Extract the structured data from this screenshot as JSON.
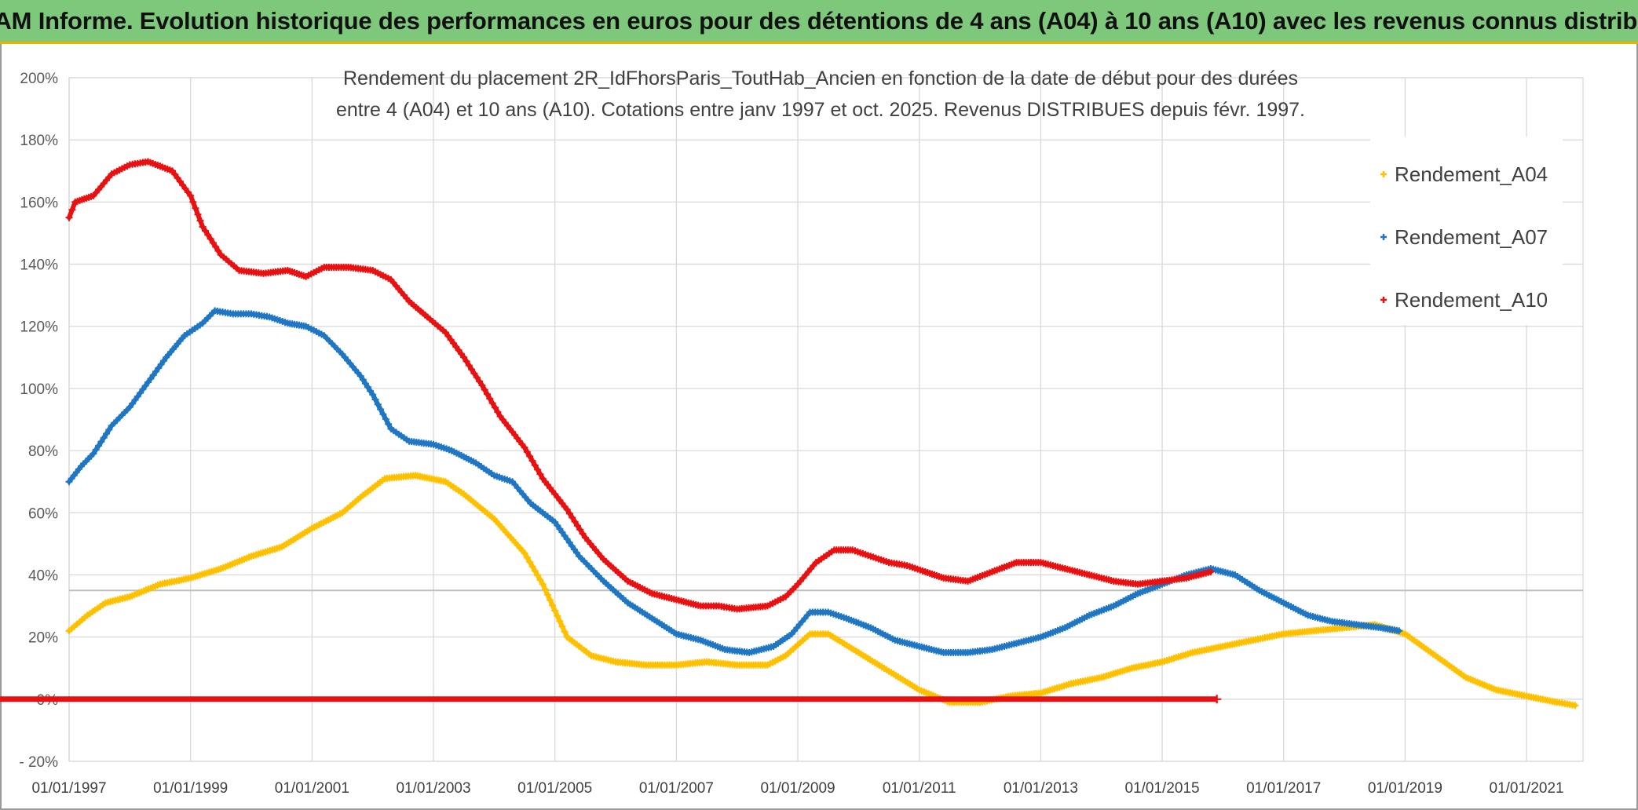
{
  "header": {
    "title": "ADAM Informe. Evolution historique des performances en euros pour des détentions de 4 ans (A04) à 10 ans (A10) avec les revenus connus distribués"
  },
  "colors": {
    "header_bg": "#7ec87c",
    "a04": "#ffc000",
    "a07": "#1f77c4",
    "a10": "#e81010",
    "grid": "#d9d9d9",
    "refline": "#bfbfbf"
  },
  "chart_data": {
    "type": "scatter",
    "title_lines": [
      "Rendement du placement 2R_IdFhorsParis_ToutHab_Ancien en fonction de la date de début pour des durées",
      "entre 4 (A04) et 10 ans (A10). Cotations entre janv 1997 et oct. 2025. Revenus DISTRIBUES depuis févr. 1997."
    ],
    "xlabel": "",
    "ylabel": "",
    "x_range": [
      1997.0,
      2022.0
    ],
    "ylim": [
      -20,
      200
    ],
    "y_ticks": [
      -20,
      0,
      20,
      40,
      60,
      80,
      100,
      120,
      140,
      160,
      180,
      200
    ],
    "y_tick_labels": [
      "- 20%",
      "0%",
      "20%",
      "40%",
      "60%",
      "80%",
      "100%",
      "120%",
      "140%",
      "160%",
      "180%",
      "200%"
    ],
    "x_ticks": [
      1997,
      1999,
      2001,
      2003,
      2005,
      2007,
      2009,
      2011,
      2013,
      2015,
      2017,
      2019,
      2021
    ],
    "x_tick_labels": [
      "01/01/1997",
      "01/01/1999",
      "01/01/2001",
      "01/01/2003",
      "01/01/2005",
      "01/01/2007",
      "01/01/2009",
      "01/01/2011",
      "01/01/2013",
      "01/01/2015",
      "01/01/2017",
      "01/01/2019",
      "01/01/2021"
    ],
    "reference_line_y": 35,
    "grid": true,
    "legend_position": "right",
    "series": [
      {
        "name": "Rendement_A04",
        "color": "#ffc000",
        "points": [
          [
            1997.0,
            22
          ],
          [
            1997.3,
            27
          ],
          [
            1997.6,
            31
          ],
          [
            1998.0,
            33
          ],
          [
            1998.5,
            37
          ],
          [
            1999.0,
            39
          ],
          [
            1999.5,
            42
          ],
          [
            2000.0,
            46
          ],
          [
            2000.5,
            49
          ],
          [
            2001.0,
            55
          ],
          [
            2001.5,
            60
          ],
          [
            2001.8,
            65
          ],
          [
            2002.2,
            71
          ],
          [
            2002.7,
            72
          ],
          [
            2003.2,
            70
          ],
          [
            2003.5,
            66
          ],
          [
            2004.0,
            58
          ],
          [
            2004.5,
            47
          ],
          [
            2004.8,
            37
          ],
          [
            2005.2,
            20
          ],
          [
            2005.6,
            14
          ],
          [
            2006.0,
            12
          ],
          [
            2006.5,
            11
          ],
          [
            2007.0,
            11
          ],
          [
            2007.5,
            12
          ],
          [
            2008.0,
            11
          ],
          [
            2008.5,
            11
          ],
          [
            2008.8,
            14
          ],
          [
            2009.2,
            21
          ],
          [
            2009.5,
            21
          ],
          [
            2010.0,
            15
          ],
          [
            2010.5,
            9
          ],
          [
            2011.0,
            3
          ],
          [
            2011.5,
            -1
          ],
          [
            2012.0,
            -1
          ],
          [
            2012.5,
            1
          ],
          [
            2013.0,
            2
          ],
          [
            2013.5,
            5
          ],
          [
            2014.0,
            7
          ],
          [
            2014.5,
            10
          ],
          [
            2015.0,
            12
          ],
          [
            2015.5,
            15
          ],
          [
            2016.0,
            17
          ],
          [
            2016.5,
            19
          ],
          [
            2017.0,
            21
          ],
          [
            2017.5,
            22
          ],
          [
            2018.0,
            23
          ],
          [
            2018.5,
            24
          ],
          [
            2019.0,
            21
          ],
          [
            2019.5,
            14
          ],
          [
            2020.0,
            7
          ],
          [
            2020.5,
            3
          ],
          [
            2021.0,
            1
          ],
          [
            2021.5,
            -1
          ],
          [
            2021.8,
            -2
          ]
        ]
      },
      {
        "name": "Rendement_A07",
        "color": "#1f77c4",
        "points": [
          [
            1997.0,
            70
          ],
          [
            1997.2,
            75
          ],
          [
            1997.4,
            79
          ],
          [
            1997.7,
            88
          ],
          [
            1998.0,
            94
          ],
          [
            1998.3,
            102
          ],
          [
            1998.6,
            110
          ],
          [
            1998.9,
            117
          ],
          [
            1999.2,
            121
          ],
          [
            1999.4,
            125
          ],
          [
            1999.7,
            124
          ],
          [
            2000.0,
            124
          ],
          [
            2000.3,
            123
          ],
          [
            2000.6,
            121
          ],
          [
            2000.9,
            120
          ],
          [
            2001.2,
            117
          ],
          [
            2001.5,
            111
          ],
          [
            2001.8,
            104
          ],
          [
            2002.0,
            98
          ],
          [
            2002.3,
            87
          ],
          [
            2002.6,
            83
          ],
          [
            2003.0,
            82
          ],
          [
            2003.3,
            80
          ],
          [
            2003.7,
            76
          ],
          [
            2004.0,
            72
          ],
          [
            2004.3,
            70
          ],
          [
            2004.6,
            63
          ],
          [
            2005.0,
            57
          ],
          [
            2005.4,
            46
          ],
          [
            2005.8,
            38
          ],
          [
            2006.2,
            31
          ],
          [
            2006.6,
            26
          ],
          [
            2007.0,
            21
          ],
          [
            2007.4,
            19
          ],
          [
            2007.8,
            16
          ],
          [
            2008.2,
            15
          ],
          [
            2008.6,
            17
          ],
          [
            2008.9,
            21
          ],
          [
            2009.2,
            28
          ],
          [
            2009.5,
            28
          ],
          [
            2009.8,
            26
          ],
          [
            2010.2,
            23
          ],
          [
            2010.6,
            19
          ],
          [
            2011.0,
            17
          ],
          [
            2011.4,
            15
          ],
          [
            2011.8,
            15
          ],
          [
            2012.2,
            16
          ],
          [
            2012.6,
            18
          ],
          [
            2013.0,
            20
          ],
          [
            2013.4,
            23
          ],
          [
            2013.8,
            27
          ],
          [
            2014.2,
            30
          ],
          [
            2014.6,
            34
          ],
          [
            2015.0,
            37
          ],
          [
            2015.4,
            40
          ],
          [
            2015.8,
            42
          ],
          [
            2016.2,
            40
          ],
          [
            2016.6,
            35
          ],
          [
            2017.0,
            31
          ],
          [
            2017.4,
            27
          ],
          [
            2017.8,
            25
          ],
          [
            2018.2,
            24
          ],
          [
            2018.6,
            23
          ],
          [
            2018.9,
            22
          ]
        ]
      },
      {
        "name": "Rendement_A10",
        "color": "#e81010",
        "points": [
          [
            1997.0,
            155
          ],
          [
            1997.1,
            160
          ],
          [
            1997.4,
            162
          ],
          [
            1997.7,
            169
          ],
          [
            1998.0,
            172
          ],
          [
            1998.3,
            173
          ],
          [
            1998.7,
            170
          ],
          [
            1999.0,
            162
          ],
          [
            1999.2,
            152
          ],
          [
            1999.5,
            143
          ],
          [
            1999.8,
            138
          ],
          [
            2000.2,
            137
          ],
          [
            2000.6,
            138
          ],
          [
            2000.9,
            136
          ],
          [
            2001.2,
            139
          ],
          [
            2001.6,
            139
          ],
          [
            2002.0,
            138
          ],
          [
            2002.3,
            135
          ],
          [
            2002.6,
            128
          ],
          [
            2002.9,
            123
          ],
          [
            2003.2,
            118
          ],
          [
            2003.5,
            110
          ],
          [
            2003.8,
            101
          ],
          [
            2004.1,
            91
          ],
          [
            2004.5,
            81
          ],
          [
            2004.8,
            71
          ],
          [
            2005.2,
            61
          ],
          [
            2005.5,
            52
          ],
          [
            2005.8,
            45
          ],
          [
            2006.2,
            38
          ],
          [
            2006.6,
            34
          ],
          [
            2007.0,
            32
          ],
          [
            2007.4,
            30
          ],
          [
            2007.7,
            30
          ],
          [
            2008.0,
            29
          ],
          [
            2008.5,
            30
          ],
          [
            2008.8,
            33
          ],
          [
            2009.0,
            37
          ],
          [
            2009.3,
            44
          ],
          [
            2009.6,
            48
          ],
          [
            2009.9,
            48
          ],
          [
            2010.2,
            46
          ],
          [
            2010.5,
            44
          ],
          [
            2010.8,
            43
          ],
          [
            2011.1,
            41
          ],
          [
            2011.4,
            39
          ],
          [
            2011.8,
            38
          ],
          [
            2012.2,
            41
          ],
          [
            2012.6,
            44
          ],
          [
            2013.0,
            44
          ],
          [
            2013.4,
            42
          ],
          [
            2013.8,
            40
          ],
          [
            2014.2,
            38
          ],
          [
            2014.6,
            37
          ],
          [
            2015.0,
            38
          ],
          [
            2015.4,
            39
          ],
          [
            2015.8,
            41
          ]
        ],
        "zero_segment": [
          2015.9,
          22.0
        ]
      }
    ]
  }
}
